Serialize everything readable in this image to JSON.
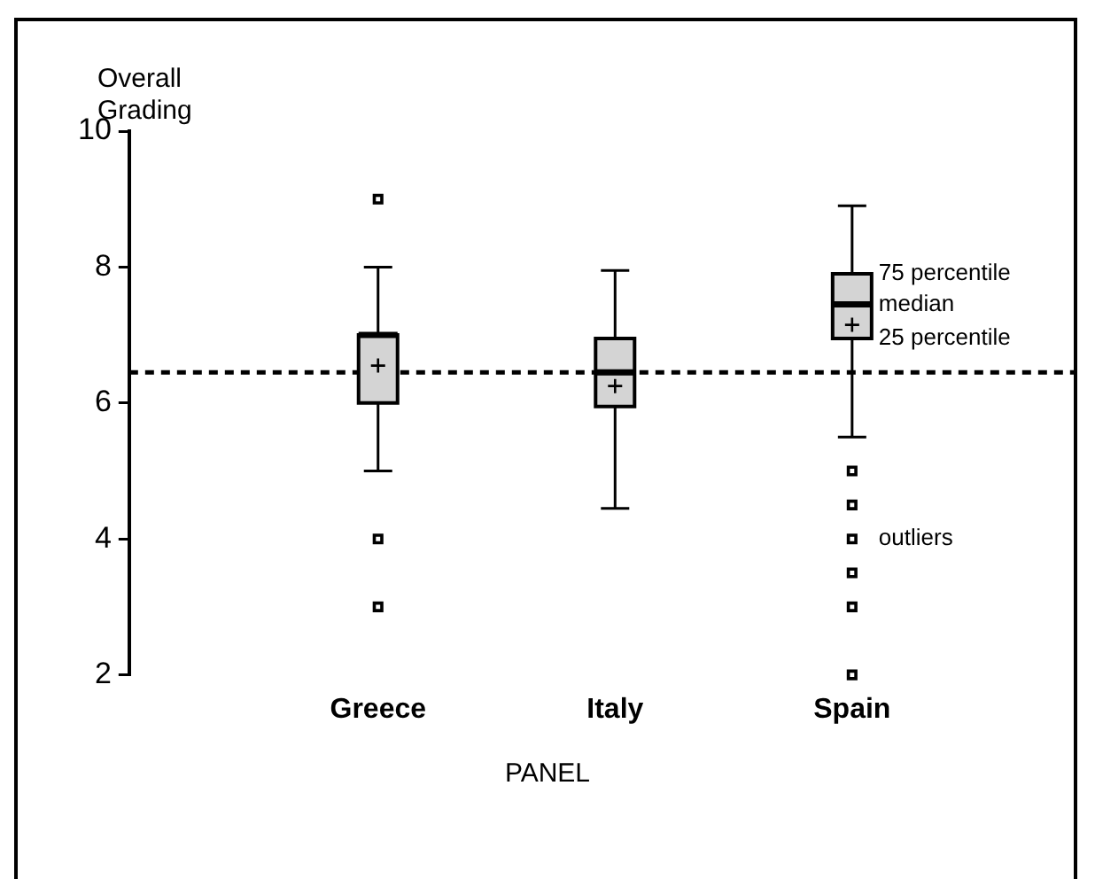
{
  "chart_data": {
    "type": "box",
    "ylabel": "Overall Grading",
    "xlabel": "PANEL",
    "categories": [
      "Greece",
      "Italy",
      "Spain"
    ],
    "color": "#d4d4d4",
    "boxes": [
      {
        "low": 5.0,
        "q1": 6.0,
        "median": 7.0,
        "q3": 7.0,
        "high": 8.0,
        "mean": 6.55,
        "outliers": [
          9,
          4,
          3
        ]
      },
      {
        "low": 4.45,
        "q1": 5.95,
        "median": 6.45,
        "q3": 6.95,
        "high": 7.95,
        "mean": 6.25
      },
      {
        "low": 5.5,
        "q1": 6.95,
        "median": 7.45,
        "q3": 7.9,
        "high": 8.9,
        "mean": 7.15,
        "outliers": [
          5,
          4.5,
          4,
          3.5,
          3,
          2
        ]
      }
    ],
    "ylim": [
      2,
      10
    ],
    "yticks": [
      2,
      4,
      6,
      8,
      10
    ],
    "grid": false,
    "legend": false,
    "marker": "square",
    "ref_lines": [
      {
        "axis": "y",
        "value": 6.45,
        "line_style": "dashed",
        "color": "#000000"
      }
    ],
    "annotations": [
      {
        "text": "75 percentile",
        "x": "Spain",
        "y": 7.9
      },
      {
        "text": "median",
        "x": "Spain",
        "y": 7.45
      },
      {
        "text": "25 percentile",
        "x": "Spain",
        "y": 6.95
      },
      "outliers"
    ]
  }
}
